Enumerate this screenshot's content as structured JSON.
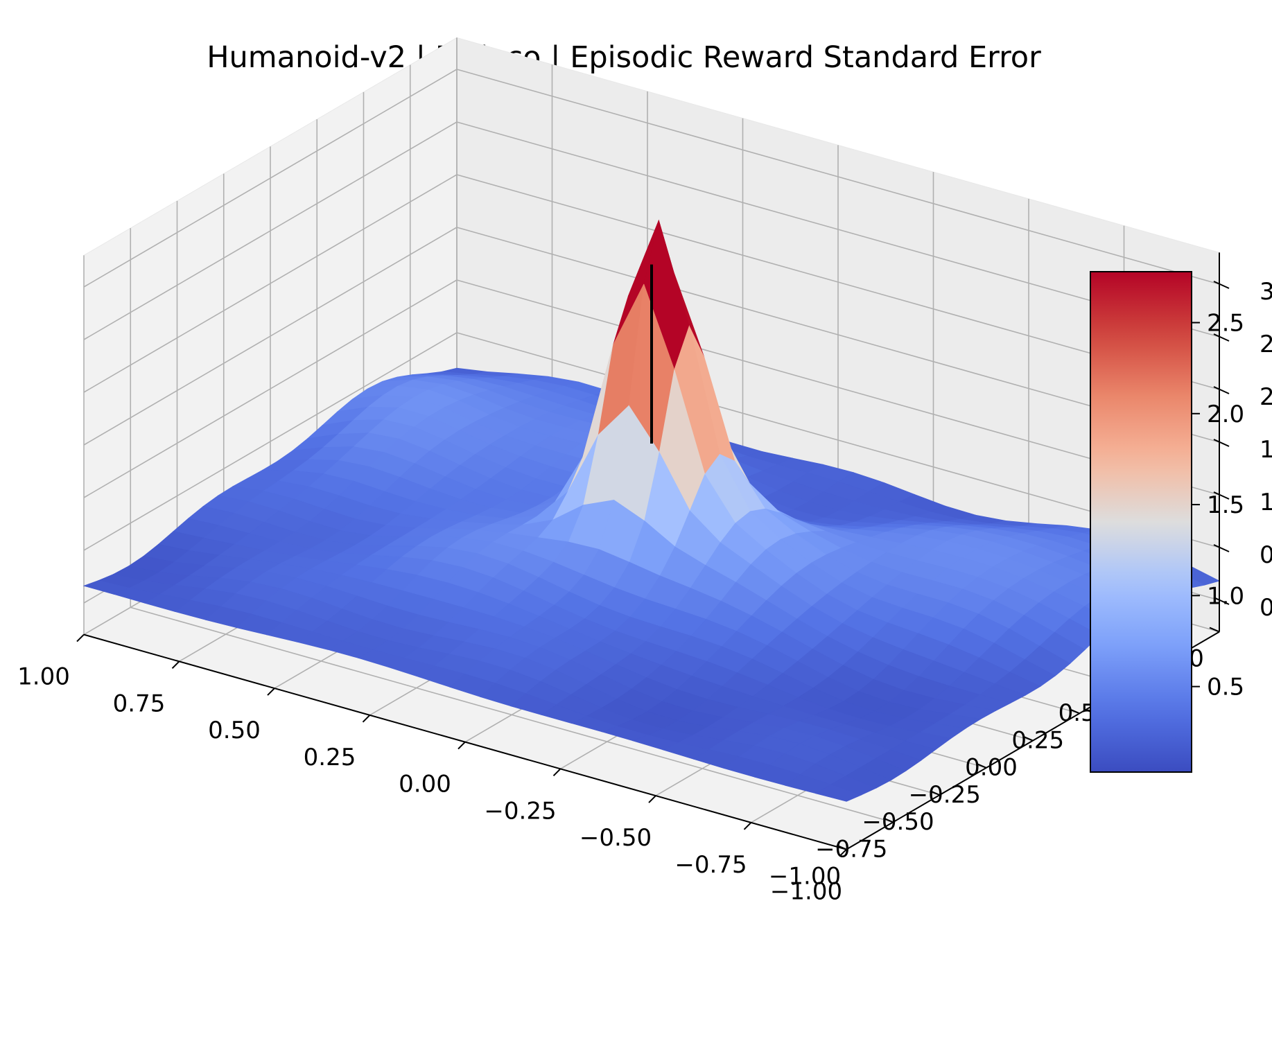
{
  "chart_data": {
    "type": "surface3d",
    "title": "Humanoid-v2 | Mujoco | Episodic Reward Standard Error",
    "xlabel": "",
    "ylabel": "",
    "zlabel": "",
    "xlim": [
      -1.0,
      1.0
    ],
    "ylim": [
      -1.0,
      1.0
    ],
    "zlim": [
      -0.3,
      3.3
    ],
    "x_ticks": [
      "−1.00",
      "−0.75",
      "−0.50",
      "−0.25",
      "0.00",
      "0.25",
      "0.50",
      "0.75",
      "1.00"
    ],
    "y_ticks": [
      "−1.00",
      "−0.75",
      "−0.50",
      "−0.25",
      "0.00",
      "0.25",
      "0.50",
      "0.75",
      "1.00"
    ],
    "z_ticks": [
      "0.0",
      "0.5",
      "1.0",
      "1.5",
      "2.0",
      "2.5",
      "3.0"
    ],
    "colorbar": {
      "colormap": "coolwarm",
      "min": 0.03,
      "max": 2.78,
      "ticks": [
        "0.5",
        "1.0",
        "1.5",
        "2.0",
        "2.5"
      ],
      "tick_values": [
        0.5,
        1.0,
        1.5,
        2.0,
        2.5
      ]
    },
    "marker_line": {
      "x": 0.0,
      "y": 0.0,
      "z_from": 1.5,
      "z_to": 3.2,
      "color": "#000000"
    },
    "surface": {
      "grid": 25,
      "base_level": 0.15,
      "components": [
        {
          "cx": 0.05,
          "cy": 0.12,
          "amp": 2.6,
          "sx": 0.09,
          "sy": 0.12
        },
        {
          "cx": -0.12,
          "cy": 0.1,
          "amp": 0.7,
          "sx": 0.25,
          "sy": 0.25
        },
        {
          "cx": -0.7,
          "cy": 0.55,
          "amp": 0.45,
          "sx": 0.25,
          "sy": 0.3
        },
        {
          "cx": 0.55,
          "cy": 0.6,
          "amp": 0.35,
          "sx": 0.3,
          "sy": 0.3
        },
        {
          "cx": 0.85,
          "cy": 0.3,
          "amp": 0.3,
          "sx": 0.15,
          "sy": 0.35
        },
        {
          "cx": 0.3,
          "cy": -0.35,
          "amp": 0.3,
          "sx": 0.3,
          "sy": 0.35
        }
      ]
    }
  }
}
